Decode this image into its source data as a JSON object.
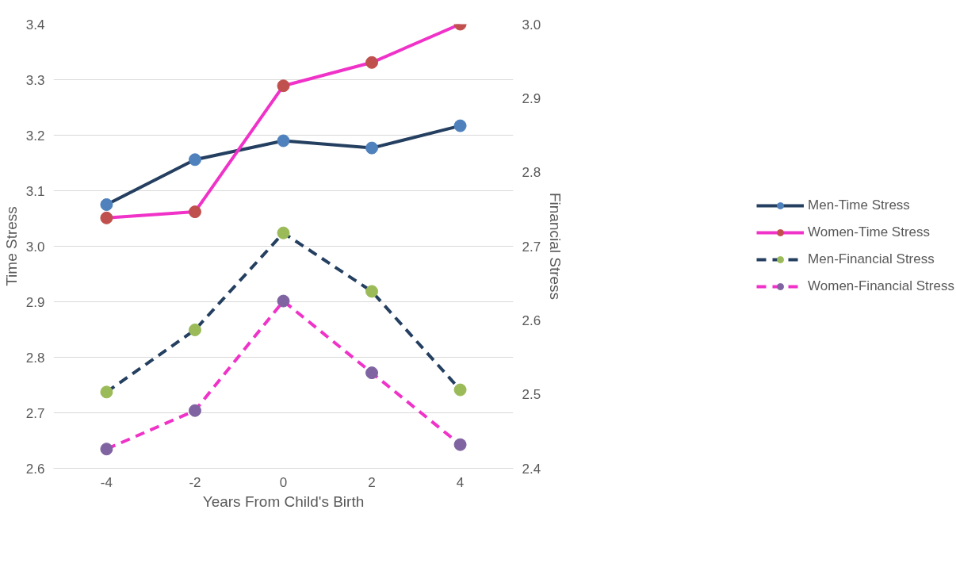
{
  "chart_data": {
    "type": "line",
    "xlabel": "Years From Child's Birth",
    "ylabel": "Time Stress",
    "y2label": "Financial Stress",
    "categories": [
      "-4",
      "-2",
      "0",
      "2",
      "4"
    ],
    "ylim": [
      2.6,
      3.4
    ],
    "yticks": [
      {
        "value": 2.6,
        "label": "2.6"
      },
      {
        "value": 2.7,
        "label": "2.7"
      },
      {
        "value": 2.8,
        "label": "2.8"
      },
      {
        "value": 2.9,
        "label": "2.9"
      },
      {
        "value": 3.0,
        "label": "3.0"
      },
      {
        "value": 3.1,
        "label": "3.1"
      },
      {
        "value": 3.2,
        "label": "3.2"
      },
      {
        "value": 3.3,
        "label": "3.3"
      },
      {
        "value": 3.4,
        "label": "3.4"
      }
    ],
    "y2lim": [
      2.4,
      3.0
    ],
    "y2ticks": [
      {
        "value": 2.4,
        "label": "2.4"
      },
      {
        "value": 2.5,
        "label": "2.5"
      },
      {
        "value": 2.6,
        "label": "2.6"
      },
      {
        "value": 2.7,
        "label": "2.7"
      },
      {
        "value": 2.8,
        "label": "2.8"
      },
      {
        "value": 2.9,
        "label": "2.9"
      },
      {
        "value": 3.0,
        "label": "3.0"
      }
    ],
    "grid": "y",
    "legend": "right",
    "marker": "circle",
    "series": [
      {
        "name": "Men-Time Stress",
        "color": "#243f60",
        "colors": [
          "#4f81bd",
          "#4f81bd",
          "#4f81bd",
          "#4f81bd",
          "#4f81bd"
        ],
        "line_style": "solid",
        "values": [
          3.075,
          3.156,
          3.19,
          3.177,
          3.217
        ]
      },
      {
        "name": "Women-Time Stress",
        "color": "#f032c8",
        "colors": [
          "#c0504d",
          "#c0504d",
          "#c0504d",
          "#c0504d",
          "#c0504d"
        ],
        "line_style": "solid",
        "values": [
          3.051,
          3.062,
          3.289,
          3.331,
          3.4
        ]
      },
      {
        "name": "Men-Financial Stress",
        "color": "#243f60",
        "colors": [
          "#9bbb59",
          "#9bbb59",
          "#9bbb59",
          "#9bbb59",
          "#9bbb59"
        ],
        "line_style": "dashed",
        "axis": "y2",
        "values": [
          2.503,
          2.587,
          2.718,
          2.639,
          2.506
        ]
      },
      {
        "name": "Women-Financial Stress",
        "color": "#f032c8",
        "colors": [
          "#8064a2",
          "#8064a2",
          "#8064a2",
          "#8064a2",
          "#8064a2"
        ],
        "line_style": "dashed",
        "axis": "y2",
        "values": [
          2.426,
          2.478,
          2.626,
          2.529,
          2.432
        ]
      }
    ]
  }
}
